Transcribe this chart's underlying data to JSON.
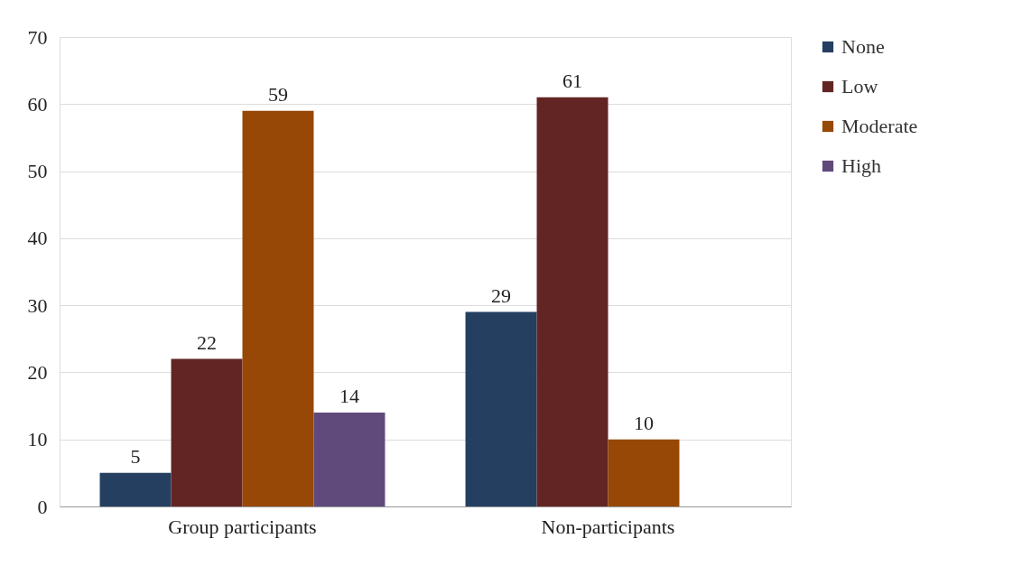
{
  "chart_data": {
    "type": "bar",
    "categories": [
      "Group participants",
      "Non-participants"
    ],
    "series": [
      {
        "name": "None",
        "color": "#243f60",
        "values": [
          5,
          29
        ]
      },
      {
        "name": "Low",
        "color": "#632523",
        "values": [
          22,
          61
        ]
      },
      {
        "name": "Moderate",
        "color": "#974806",
        "values": [
          59,
          10
        ]
      },
      {
        "name": "High",
        "color": "#604a7b",
        "values": [
          14,
          null
        ]
      }
    ],
    "ylim": [
      0,
      70
    ],
    "yticks": [
      0,
      10,
      20,
      30,
      40,
      50,
      60,
      70
    ],
    "grid": "y",
    "legend": "right",
    "data_labels": true
  }
}
